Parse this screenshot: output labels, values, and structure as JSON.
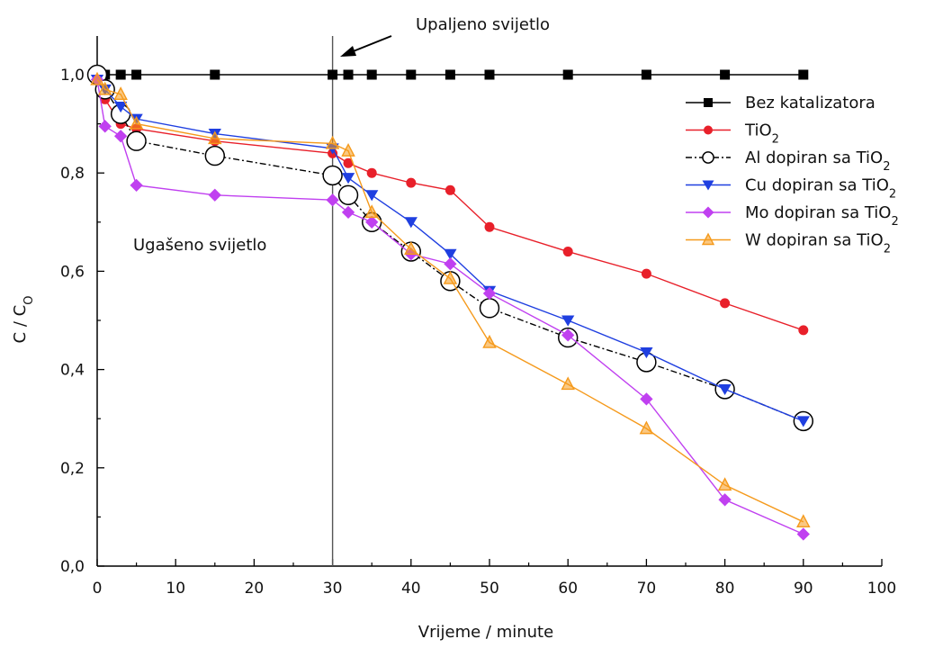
{
  "chart_data": {
    "type": "line",
    "xlabel": "Vrijeme / minute",
    "ylabel": "C / C",
    "ylabel_sub": "O",
    "xlim": [
      0,
      100
    ],
    "ylim": [
      0,
      1.0
    ],
    "x_ticks": [
      "0",
      "10",
      "20",
      "30",
      "40",
      "50",
      "60",
      "70",
      "80",
      "90",
      "100"
    ],
    "y_ticks": [
      "0,0",
      "0,2",
      "0,4",
      "0,6",
      "0,8",
      "1,0"
    ],
    "grid": false,
    "legend_position": "top-right",
    "annotations": {
      "light_on": "Upaljeno svijetlo",
      "light_off": "Ugašeno svijetlo"
    },
    "vertical_line_x": 30,
    "series": [
      {
        "name": "Bez katalizatora",
        "sub": "",
        "suffix": "",
        "color": "#000000",
        "marker": "square",
        "dashed": false,
        "x": [
          0,
          1,
          3,
          5,
          15,
          30,
          32,
          35,
          40,
          45,
          50,
          60,
          70,
          80,
          90
        ],
        "y": [
          1.0,
          1.0,
          1.0,
          1.0,
          1.0,
          1.0,
          1.0,
          1.0,
          1.0,
          1.0,
          1.0,
          1.0,
          1.0,
          1.0,
          1.0
        ]
      },
      {
        "name": "TiO",
        "sub": "2",
        "suffix": "",
        "color": "#e8202a",
        "marker": "circle",
        "dashed": false,
        "x": [
          0,
          1,
          3,
          5,
          15,
          30,
          32,
          35,
          40,
          45,
          50,
          60,
          70,
          80,
          90
        ],
        "y": [
          0.99,
          0.95,
          0.9,
          0.89,
          0.865,
          0.84,
          0.82,
          0.8,
          0.78,
          0.765,
          0.69,
          0.64,
          0.595,
          0.535,
          0.48
        ]
      },
      {
        "name": "Al dopiran sa TiO",
        "sub": "2",
        "suffix": "",
        "color": "#000000",
        "marker": "open-circle",
        "dashed": true,
        "x": [
          0,
          1,
          3,
          5,
          15,
          30,
          32,
          35,
          40,
          45,
          50,
          60,
          70,
          80,
          90
        ],
        "y": [
          1.0,
          0.97,
          0.92,
          0.865,
          0.835,
          0.795,
          0.755,
          0.7,
          0.64,
          0.58,
          0.525,
          0.465,
          0.415,
          0.36,
          0.295
        ]
      },
      {
        "name": "Cu dopiran sa TiO",
        "sub": "2",
        "suffix": "",
        "color": "#1f3fe0",
        "marker": "triangle-down",
        "dashed": false,
        "x": [
          0,
          1,
          3,
          5,
          15,
          30,
          32,
          35,
          40,
          45,
          50,
          60,
          70,
          80,
          90
        ],
        "y": [
          0.99,
          0.97,
          0.935,
          0.91,
          0.88,
          0.85,
          0.79,
          0.755,
          0.7,
          0.635,
          0.56,
          0.5,
          0.435,
          0.36,
          0.295
        ]
      },
      {
        "name": "Mo dopiran sa TiO",
        "sub": "2",
        "suffix": "",
        "color": "#c040f0",
        "marker": "diamond",
        "dashed": false,
        "x": [
          0,
          1,
          3,
          5,
          15,
          30,
          32,
          35,
          40,
          45,
          50,
          60,
          70,
          80,
          90
        ],
        "y": [
          0.99,
          0.895,
          0.875,
          0.775,
          0.755,
          0.745,
          0.72,
          0.7,
          0.635,
          0.615,
          0.555,
          0.47,
          0.34,
          0.135,
          0.065
        ]
      },
      {
        "name": "W dopiran sa TiO",
        "sub": "2",
        "suffix": "",
        "color": "#f59a1c",
        "marker": "triangle-up",
        "dashed": false,
        "x": [
          0,
          1,
          3,
          5,
          15,
          30,
          32,
          35,
          40,
          45,
          50,
          60,
          70,
          80,
          90
        ],
        "y": [
          0.99,
          0.97,
          0.96,
          0.9,
          0.87,
          0.86,
          0.845,
          0.72,
          0.645,
          0.585,
          0.455,
          0.37,
          0.28,
          0.165,
          0.09
        ]
      }
    ]
  }
}
